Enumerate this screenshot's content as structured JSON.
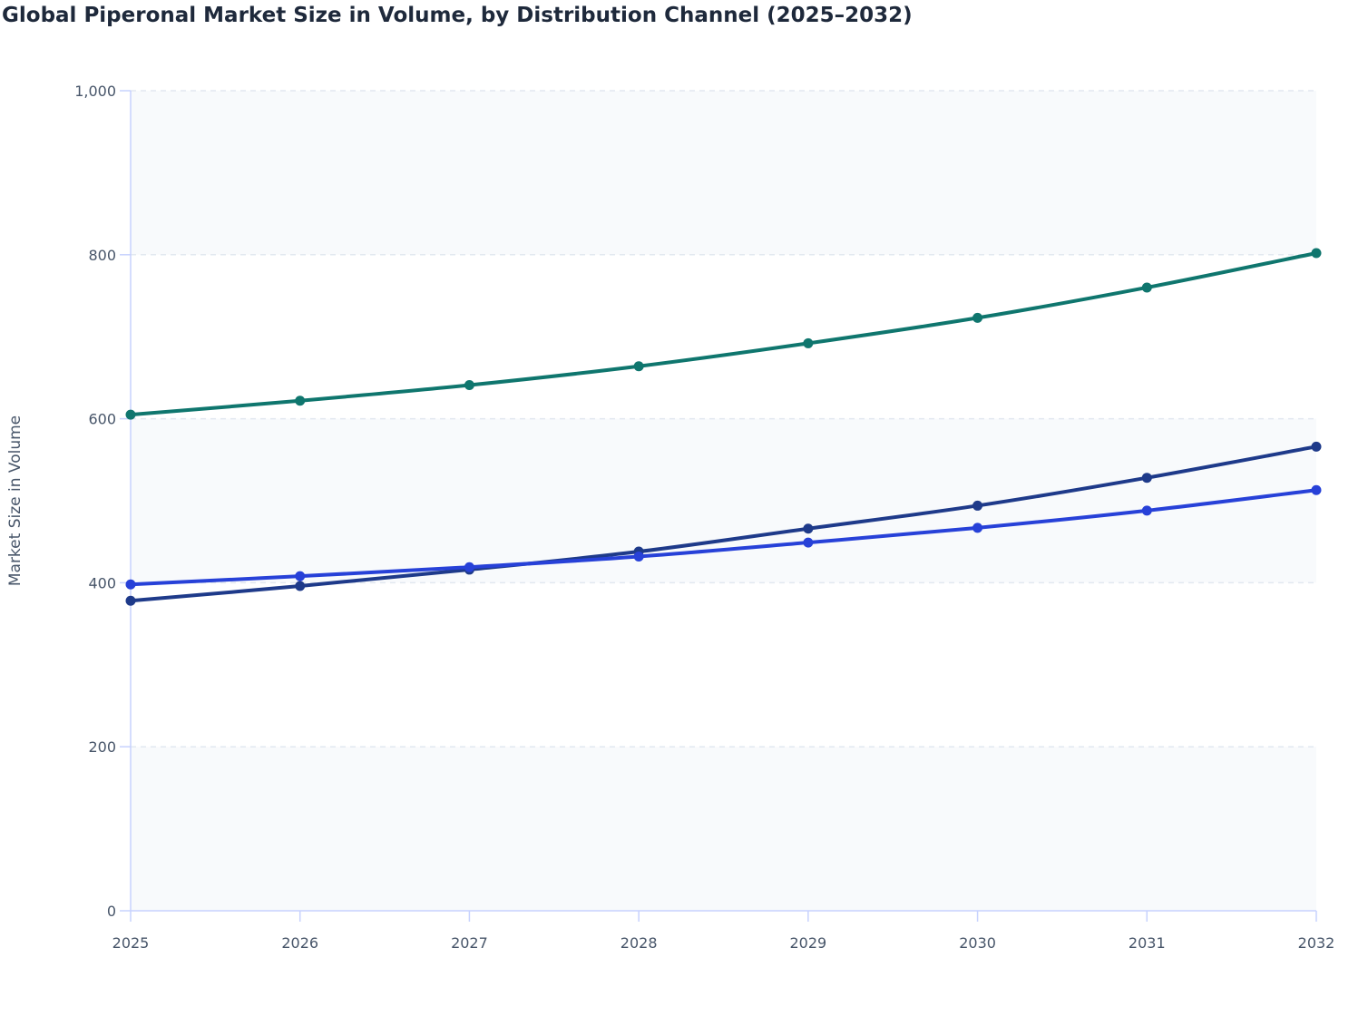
{
  "chart_data": {
    "type": "line",
    "title": "Global Piperonal Market Size in Volume, by Distribution Channel (2025–2032)",
    "xlabel": "",
    "ylabel": "Market Size in Volume",
    "x": [
      2025,
      2026,
      2027,
      2028,
      2029,
      2030,
      2031,
      2032
    ],
    "ylim": [
      0,
      1000
    ],
    "yticks": [
      0,
      200,
      400,
      600,
      800,
      1000
    ],
    "ytick_labels": [
      "0",
      "200",
      "400",
      "600",
      "800",
      "1,000"
    ],
    "xtick_labels": [
      "2025",
      "2026",
      "2027",
      "2028",
      "2029",
      "2030",
      "2031",
      "2032"
    ],
    "grid": true,
    "legend": "none",
    "series": [
      {
        "color": "#0f766e",
        "values": [
          605,
          622,
          641,
          664,
          692,
          723,
          760,
          802
        ]
      },
      {
        "color": "#1e3a8a",
        "values": [
          378,
          396,
          416,
          438,
          466,
          494,
          528,
          566
        ]
      },
      {
        "color": "#2741d8",
        "values": [
          398,
          408,
          419,
          432,
          449,
          467,
          488,
          513
        ]
      }
    ]
  }
}
